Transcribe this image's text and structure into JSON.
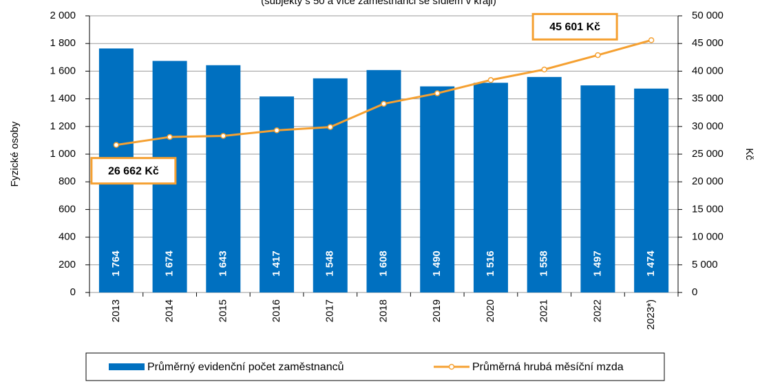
{
  "chart_data": {
    "type": "bar_line",
    "subtitle": "(subjekty s 50 a více zaměstnanci se sídlem v kraji)",
    "y_label": "Fyzické osoby",
    "y2_label": "Kč",
    "categories": [
      "2013",
      "2014",
      "2015",
      "2016",
      "2017",
      "2018",
      "2019",
      "2020",
      "2021",
      "2022",
      "2023*)"
    ],
    "series": [
      {
        "name": "Průměrný evidenční počet zaměstnanců",
        "type": "bar",
        "color": "#0070c0",
        "values": [
          1764,
          1674,
          1643,
          1417,
          1548,
          1608,
          1490,
          1516,
          1558,
          1497,
          1474
        ],
        "value_labels": [
          "1 764",
          "1 674",
          "1 643",
          "1 417",
          "1 548",
          "1 608",
          "1 490",
          "1 516",
          "1 558",
          "1 497",
          "1 474"
        ]
      },
      {
        "name": "Průměrná hrubá měsíční mzda",
        "type": "line",
        "axis": "y2",
        "color": "#f5a031",
        "values": [
          26662,
          28100,
          28300,
          29300,
          29900,
          34100,
          36000,
          38400,
          40300,
          42900,
          45601
        ],
        "value_labels": [
          "26 662 Kč",
          null,
          null,
          null,
          null,
          null,
          null,
          null,
          null,
          null,
          "45 601 Kč"
        ]
      }
    ],
    "ylim": [
      0,
      2000
    ],
    "yticks": [
      0,
      200,
      400,
      600,
      800,
      {
        "value": 1000,
        "label": "1 000"
      },
      {
        "value": 1200,
        "label": "1 200"
      },
      {
        "value": 1400,
        "label": "1 400"
      },
      {
        "value": 1600,
        "label": "1 600"
      },
      {
        "value": 1800,
        "label": "1 800"
      },
      {
        "value": 2000,
        "label": "2 000"
      }
    ],
    "y2lim": [
      0,
      50000
    ],
    "y2ticks": [
      0,
      {
        "value": 5000,
        "label": "5 000"
      },
      {
        "value": 10000,
        "label": "10 000"
      },
      {
        "value": 15000,
        "label": "15 000"
      },
      {
        "value": 20000,
        "label": "20 000"
      },
      {
        "value": 25000,
        "label": "25 000"
      },
      {
        "value": 30000,
        "label": "30 000"
      },
      {
        "value": 35000,
        "label": "35 000"
      },
      {
        "value": 40000,
        "label": "40 000"
      },
      {
        "value": 45000,
        "label": "45 000"
      },
      {
        "value": 50000,
        "label": "50 000"
      }
    ],
    "grid": true,
    "legend": "bottom"
  }
}
